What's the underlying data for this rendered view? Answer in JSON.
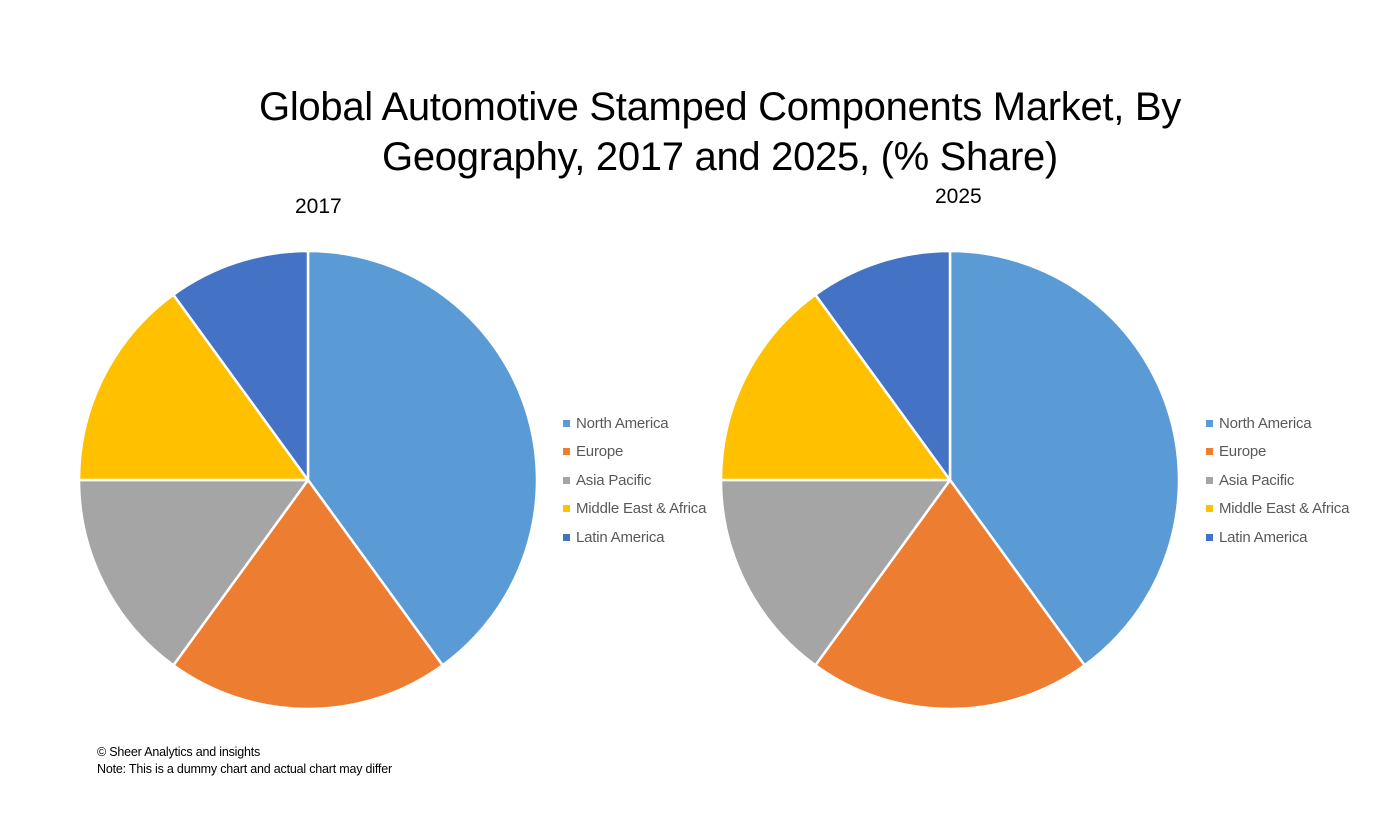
{
  "title_lines": [
    "Global Automotive Stamped Components Market, By",
    "Geography, 2017 and 2025, (% Share)"
  ],
  "chart_data": [
    {
      "type": "pie",
      "title": "2017",
      "categories": [
        "North America",
        "Europe",
        "Asia Pacific",
        "Middle East & Africa",
        "Latin America"
      ],
      "values": [
        40,
        20,
        15,
        15,
        10
      ],
      "colors": [
        "#5B9BD5",
        "#ED7D31",
        "#A5A5A5",
        "#FFC000",
        "#4472C4"
      ],
      "legend_position": "right",
      "start_angle": "12 o'clock, clockwise"
    },
    {
      "type": "pie",
      "title": "2025",
      "categories": [
        "North America",
        "Europe",
        "Asia Pacific",
        "Middle East & Africa",
        "Latin America"
      ],
      "values": [
        40,
        20,
        15,
        15,
        10
      ],
      "colors": [
        "#5B9BD5",
        "#ED7D31",
        "#A5A5A5",
        "#FFC000",
        "#4472C4"
      ],
      "legend_position": "right",
      "start_angle": "12 o'clock, clockwise"
    }
  ],
  "footer": {
    "copyright": "© Sheer Analytics and insights",
    "note": "Note: This is a dummy chart and actual chart may differ"
  }
}
